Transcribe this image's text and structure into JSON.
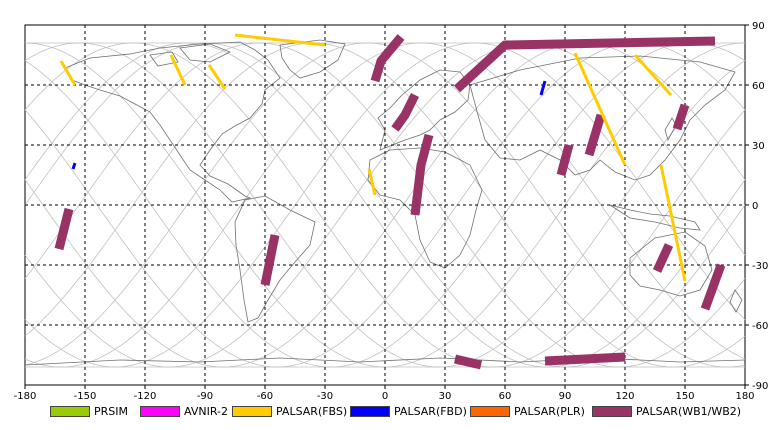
{
  "map": {
    "x_ticks": [
      "-180",
      "-150",
      "-120",
      "-90",
      "-60",
      "-30",
      "0",
      "30",
      "60",
      "90",
      "120",
      "150",
      "180"
    ],
    "y_ticks": [
      "90",
      "60",
      "30",
      "0",
      "-30",
      "-60",
      "-90"
    ],
    "x_range": [
      -180,
      180
    ],
    "y_range": [
      -90,
      90
    ],
    "grid": "dashed black, 30° spacing",
    "orbit_color": "#c0c0c0",
    "coast_color": "#707070"
  },
  "legend": [
    {
      "label": "PRSIM",
      "color": "#99cc00"
    },
    {
      "label": "AVNIR-2",
      "color": "#ff00ff"
    },
    {
      "label": "PALSAR(FBS)",
      "color": "#ffcc00"
    },
    {
      "label": "PALSAR(FBD)",
      "color": "#0000ff"
    },
    {
      "label": "PALSAR(PLR)",
      "color": "#ff6600"
    },
    {
      "label": "PALSAR(WB1/WB2)",
      "color": "#993366"
    }
  ],
  "chart_data": {
    "type": "map",
    "projection": "equirectangular",
    "x_range": [
      -180,
      180
    ],
    "y_range": [
      -90,
      90
    ],
    "swaths": [
      {
        "mode": "PALSAR(WB1/WB2)",
        "path": [
          [
            8,
            84
          ],
          [
            -2,
            72
          ],
          [
            -5,
            62
          ]
        ]
      },
      {
        "mode": "PALSAR(WB1/WB2)",
        "path": [
          [
            15,
            55
          ],
          [
            10,
            45
          ],
          [
            5,
            38
          ]
        ]
      },
      {
        "mode": "PALSAR(WB1/WB2)",
        "path": [
          [
            22,
            35
          ],
          [
            18,
            20
          ],
          [
            15,
            -5
          ]
        ]
      },
      {
        "mode": "PALSAR(WB1/WB2)",
        "path": [
          [
            36,
            58
          ],
          [
            60,
            80
          ],
          [
            165,
            82
          ]
        ]
      },
      {
        "mode": "PALSAR(WB1/WB2)",
        "path": [
          [
            -55,
            -15
          ],
          [
            -60,
            -40
          ]
        ]
      },
      {
        "mode": "PALSAR(WB1/WB2)",
        "path": [
          [
            -158,
            -2
          ],
          [
            -163,
            -22
          ]
        ]
      },
      {
        "mode": "PALSAR(WB1/WB2)",
        "path": [
          [
            92,
            30
          ],
          [
            88,
            15
          ]
        ]
      },
      {
        "mode": "PALSAR(WB1/WB2)",
        "path": [
          [
            108,
            45
          ],
          [
            102,
            25
          ]
        ]
      },
      {
        "mode": "PALSAR(WB1/WB2)",
        "path": [
          [
            150,
            50
          ],
          [
            146,
            38
          ]
        ]
      },
      {
        "mode": "PALSAR(WB1/WB2)",
        "path": [
          [
            142,
            -20
          ],
          [
            136,
            -33
          ]
        ]
      },
      {
        "mode": "PALSAR(WB1/WB2)",
        "path": [
          [
            168,
            -30
          ],
          [
            160,
            -52
          ]
        ]
      },
      {
        "mode": "PALSAR(WB1/WB2)",
        "path": [
          [
            80,
            -78
          ],
          [
            120,
            -76
          ]
        ]
      },
      {
        "mode": "PALSAR(WB1/WB2)",
        "path": [
          [
            35,
            -77
          ],
          [
            48,
            -80
          ]
        ]
      },
      {
        "mode": "PALSAR(FBS)",
        "path": [
          [
            -75,
            85
          ],
          [
            -30,
            80
          ]
        ]
      },
      {
        "mode": "PALSAR(FBS)",
        "path": [
          [
            95,
            76
          ],
          [
            120,
            20
          ]
        ]
      },
      {
        "mode": "PALSAR(FBS)",
        "path": [
          [
            125,
            75
          ],
          [
            143,
            55
          ]
        ]
      },
      {
        "mode": "PALSAR(FBS)",
        "path": [
          [
            -162,
            72
          ],
          [
            -155,
            60
          ]
        ]
      },
      {
        "mode": "PALSAR(FBS)",
        "path": [
          [
            -107,
            75
          ],
          [
            -100,
            60
          ]
        ]
      },
      {
        "mode": "PALSAR(FBS)",
        "path": [
          [
            -88,
            70
          ],
          [
            -80,
            58
          ]
        ]
      },
      {
        "mode": "PALSAR(FBS)",
        "path": [
          [
            138,
            20
          ],
          [
            150,
            -38
          ]
        ]
      },
      {
        "mode": "PALSAR(FBS)",
        "path": [
          [
            -8,
            18
          ],
          [
            -5,
            5
          ]
        ]
      },
      {
        "mode": "PALSAR(FBD)",
        "path": [
          [
            80,
            62
          ],
          [
            78,
            55
          ]
        ]
      },
      {
        "mode": "PALSAR(FBD)",
        "path": [
          [
            -155,
            21
          ],
          [
            -156,
            18
          ]
        ]
      }
    ]
  }
}
